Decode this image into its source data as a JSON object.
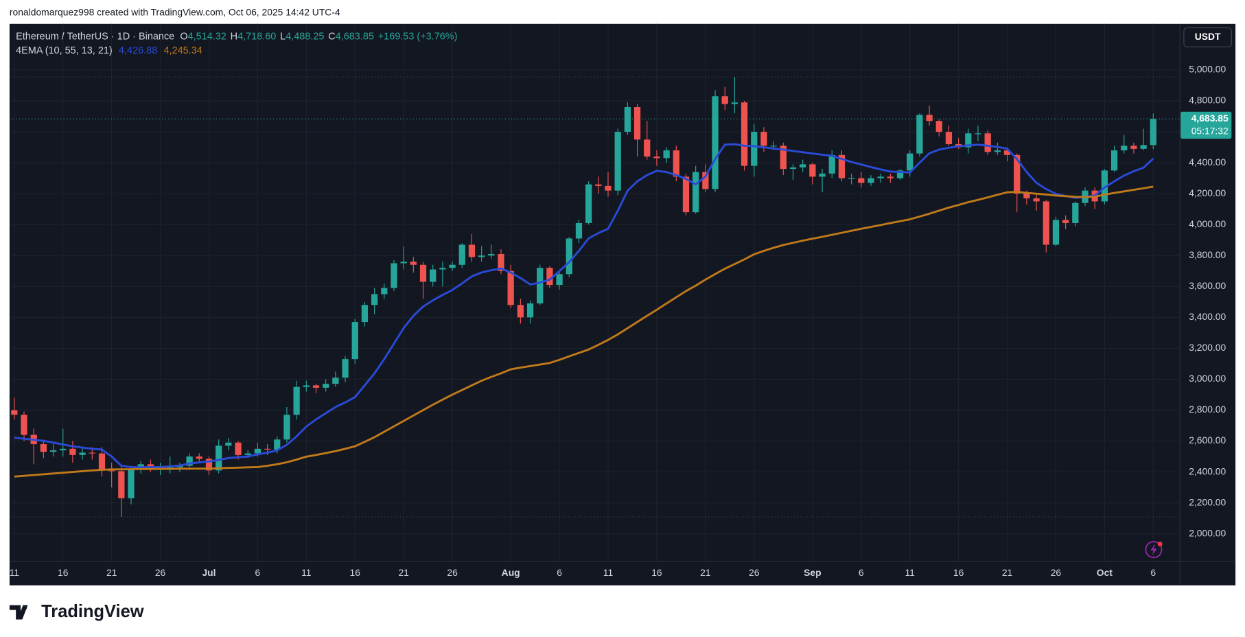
{
  "header": {
    "credit": "ronaldomarquez998 created with TradingView.com, Oct 06, 2025 14:42 UTC-4",
    "logo": "TradingView"
  },
  "chart_data": {
    "type": "candlestick",
    "title": "Ethereum / TetherUS · 1D · Binance",
    "ohlc_legend": [
      {
        "key": "O",
        "label": "4,514.32"
      },
      {
        "key": "H",
        "label": "4,718.60"
      },
      {
        "key": "L",
        "label": "4,488.25"
      },
      {
        "key": "C",
        "label": "4,683.85"
      }
    ],
    "change": "+169.53 (+3.76%)",
    "indicator": "4EMA (10, 55, 13, 21)",
    "currency": "USDT",
    "last_price_label": "4,683.85",
    "countdown": "05:17:32",
    "up_color": "#26a69a",
    "down_color": "#ef5350",
    "grid": true,
    "categories": [
      "11",
      null,
      null,
      null,
      null,
      "16",
      null,
      null,
      null,
      null,
      "21",
      null,
      null,
      null,
      null,
      "26",
      null,
      null,
      null,
      null,
      "Jul",
      null,
      null,
      null,
      null,
      "6",
      null,
      null,
      null,
      null,
      "11",
      null,
      null,
      null,
      null,
      "16",
      null,
      null,
      null,
      null,
      "21",
      null,
      null,
      null,
      null,
      "26",
      null,
      null,
      null,
      null,
      null,
      "Aug",
      null,
      null,
      null,
      null,
      "6",
      null,
      null,
      null,
      null,
      "11",
      null,
      null,
      null,
      null,
      "16",
      null,
      null,
      null,
      null,
      "21",
      null,
      null,
      null,
      null,
      "26",
      null,
      null,
      null,
      null,
      null,
      "Sep",
      null,
      null,
      null,
      null,
      "6",
      null,
      null,
      null,
      null,
      "11",
      null,
      null,
      null,
      null,
      "16",
      null,
      null,
      null,
      null,
      "21",
      null,
      null,
      null,
      null,
      "26",
      null,
      null,
      null,
      null,
      "Oct",
      null,
      null,
      null,
      null,
      "6"
    ],
    "open": [
      2800,
      2770,
      2640,
      2580,
      2530,
      2540,
      2550,
      2510,
      2525,
      2520,
      2410,
      2405,
      2230,
      2415,
      2450,
      2420,
      2420,
      2430,
      2440,
      2500,
      2485,
      2410,
      2570,
      2590,
      2510,
      2520,
      2550,
      2545,
      2610,
      2770,
      2950,
      2960,
      2945,
      2970,
      3010,
      3130,
      3370,
      3480,
      3550,
      3590,
      3750,
      3760,
      3740,
      3630,
      3710,
      3720,
      3740,
      3870,
      3790,
      3800,
      3810,
      3700,
      3480,
      3400,
      3490,
      3720,
      3610,
      3680,
      3910,
      4010,
      4260,
      4250,
      4220,
      4600,
      4760,
      4550,
      4440,
      4430,
      4480,
      4310,
      4080,
      4340,
      4230,
      4830,
      4780,
      4790,
      4380,
      4600,
      4510,
      4510,
      4360,
      4370,
      4390,
      4310,
      4330,
      4450,
      4300,
      4300,
      4270,
      4300,
      4310,
      4300,
      4350,
      4460,
      4710,
      4670,
      4600,
      4520,
      4500,
      4590,
      4590,
      4470,
      4480,
      4450,
      4200,
      4170,
      4150,
      3870,
      4030,
      4010,
      4140,
      4220,
      4150,
      4350,
      4480,
      4510,
      4490,
      4514.32
    ],
    "high": [
      2880,
      2790,
      2680,
      2610,
      2580,
      2680,
      2600,
      2560,
      2560,
      2560,
      2460,
      2440,
      2440,
      2470,
      2480,
      2460,
      2500,
      2460,
      2520,
      2520,
      2500,
      2610,
      2620,
      2600,
      2540,
      2590,
      2580,
      2630,
      2820,
      2990,
      2990,
      2970,
      3000,
      3050,
      3150,
      3390,
      3500,
      3590,
      3620,
      3770,
      3860,
      3790,
      3760,
      3740,
      3760,
      3760,
      3880,
      3940,
      3860,
      3870,
      3840,
      3740,
      3520,
      3510,
      3740,
      3730,
      3700,
      3920,
      4030,
      4280,
      4310,
      4340,
      4620,
      4790,
      4780,
      4670,
      4480,
      4500,
      4510,
      4330,
      4380,
      4390,
      4870,
      4890,
      4955,
      4800,
      4650,
      4630,
      4540,
      4530,
      4390,
      4420,
      4400,
      4360,
      4480,
      4480,
      4330,
      4340,
      4320,
      4330,
      4330,
      4360,
      4480,
      4720,
      4770,
      4680,
      4640,
      4560,
      4620,
      4640,
      4610,
      4530,
      4500,
      4460,
      4220,
      4200,
      4160,
      4050,
      4060,
      4150,
      4240,
      4240,
      4360,
      4510,
      4580,
      4530,
      4620,
      4718.6
    ],
    "low": [
      2740,
      2600,
      2450,
      2490,
      2500,
      2500,
      2460,
      2480,
      2480,
      2370,
      2300,
      2110,
      2190,
      2390,
      2400,
      2380,
      2390,
      2400,
      2420,
      2460,
      2380,
      2390,
      2540,
      2480,
      2490,
      2500,
      2510,
      2520,
      2590,
      2740,
      2920,
      2910,
      2920,
      2950,
      2980,
      3100,
      3340,
      3420,
      3520,
      3570,
      3710,
      3690,
      3520,
      3600,
      3600,
      3700,
      3720,
      3760,
      3760,
      3780,
      3680,
      3460,
      3360,
      3360,
      3480,
      3590,
      3580,
      3660,
      3880,
      4000,
      4200,
      4180,
      4190,
      4580,
      4440,
      4420,
      4380,
      4400,
      4280,
      4060,
      4070,
      4210,
      4210,
      4740,
      4720,
      4350,
      4310,
      4470,
      4480,
      4320,
      4290,
      4340,
      4260,
      4210,
      4300,
      4280,
      4260,
      4240,
      4250,
      4270,
      4270,
      4290,
      4310,
      4440,
      4640,
      4570,
      4510,
      4490,
      4460,
      4540,
      4450,
      4450,
      4410,
      4080,
      4130,
      4090,
      3820,
      3860,
      3970,
      3990,
      4120,
      4100,
      4130,
      4340,
      4460,
      4460,
      4480,
      4488.25
    ],
    "close": [
      2770,
      2640,
      2580,
      2530,
      2540,
      2550,
      2510,
      2525,
      2520,
      2410,
      2405,
      2230,
      2415,
      2450,
      2420,
      2420,
      2430,
      2440,
      2500,
      2485,
      2410,
      2570,
      2590,
      2510,
      2520,
      2550,
      2545,
      2610,
      2770,
      2950,
      2960,
      2945,
      2970,
      3010,
      3130,
      3370,
      3480,
      3550,
      3590,
      3750,
      3760,
      3740,
      3630,
      3710,
      3720,
      3740,
      3870,
      3790,
      3800,
      3810,
      3700,
      3480,
      3400,
      3490,
      3720,
      3610,
      3680,
      3910,
      4010,
      4260,
      4250,
      4220,
      4600,
      4760,
      4550,
      4440,
      4430,
      4480,
      4310,
      4080,
      4340,
      4230,
      4830,
      4780,
      4790,
      4380,
      4600,
      4510,
      4510,
      4360,
      4370,
      4390,
      4310,
      4330,
      4450,
      4300,
      4300,
      4270,
      4300,
      4310,
      4300,
      4350,
      4460,
      4710,
      4670,
      4600,
      4520,
      4500,
      4590,
      4590,
      4470,
      4480,
      4450,
      4200,
      4170,
      4150,
      3870,
      4030,
      4010,
      4140,
      4220,
      4150,
      4350,
      4480,
      4510,
      4490,
      4514.32,
      4683.85
    ],
    "series": [
      {
        "color": "#2a4bd7",
        "value_label": "4,426.88",
        "values": [
          2622,
          2615,
          2608,
          2601,
          2590,
          2578,
          2566,
          2558,
          2550,
          2545,
          2500,
          2440,
          2432,
          2430,
          2432,
          2432,
          2436,
          2442,
          2455,
          2462,
          2468,
          2478,
          2490,
          2495,
          2500,
          2514,
          2525,
          2540,
          2576,
          2630,
          2694,
          2740,
          2780,
          2820,
          2850,
          2884,
          2960,
          3038,
          3130,
          3230,
          3331,
          3410,
          3470,
          3510,
          3545,
          3577,
          3620,
          3665,
          3690,
          3705,
          3716,
          3690,
          3654,
          3613,
          3625,
          3644,
          3700,
          3757,
          3830,
          3911,
          3945,
          3973,
          4090,
          4219,
          4280,
          4320,
          4348,
          4340,
          4320,
          4296,
          4260,
          4311,
          4424,
          4517,
          4520,
          4510,
          4507,
          4500,
          4492,
          4485,
          4476,
          4468,
          4460,
          4452,
          4445,
          4425,
          4405,
          4389,
          4372,
          4357,
          4343,
          4340,
          4337,
          4400,
          4461,
          4485,
          4497,
          4507,
          4512,
          4517,
          4510,
          4502,
          4491,
          4424,
          4340,
          4270,
          4230,
          4199,
          4185,
          4173,
          4178,
          4188,
          4240,
          4280,
          4317,
          4345,
          4368,
          4426.88
        ]
      },
      {
        "color": "#c17a1a",
        "value_label": "4,245.34",
        "values": [
          2370,
          2375,
          2380,
          2385,
          2390,
          2395,
          2400,
          2405,
          2410,
          2414,
          2417,
          2417,
          2418,
          2419,
          2419,
          2420,
          2420,
          2421,
          2421,
          2422,
          2422,
          2424,
          2426,
          2428,
          2430,
          2432,
          2440,
          2450,
          2463,
          2480,
          2499,
          2510,
          2522,
          2535,
          2550,
          2566,
          2595,
          2625,
          2660,
          2695,
          2730,
          2765,
          2800,
          2835,
          2868,
          2900,
          2930,
          2960,
          2990,
          3015,
          3038,
          3064,
          3075,
          3085,
          3095,
          3105,
          3125,
          3148,
          3170,
          3192,
          3222,
          3254,
          3290,
          3330,
          3370,
          3410,
          3449,
          3490,
          3530,
          3570,
          3605,
          3644,
          3680,
          3715,
          3745,
          3775,
          3808,
          3830,
          3850,
          3868,
          3882,
          3896,
          3909,
          3921,
          3934,
          3947,
          3960,
          3973,
          3985,
          3997,
          4010,
          4022,
          4034,
          4052,
          4070,
          4090,
          4110,
          4127,
          4145,
          4160,
          4176,
          4193,
          4209,
          4212,
          4205,
          4200,
          4195,
          4188,
          4184,
          4180,
          4178,
          4180,
          4194,
          4205,
          4215,
          4225,
          4235,
          4245.34
        ]
      }
    ],
    "ylim": [
      1821,
      5293
    ],
    "yticks": [
      {
        "value": 2000,
        "label": "2,000.00"
      },
      {
        "value": 2200,
        "label": "2,200.00"
      },
      {
        "value": 2400,
        "label": "2,400.00"
      },
      {
        "value": 2600,
        "label": "2,600.00"
      },
      {
        "value": 2800,
        "label": "2,800.00"
      },
      {
        "value": 3000,
        "label": "3,000.00"
      },
      {
        "value": 3200,
        "label": "3,200.00"
      },
      {
        "value": 3400,
        "label": "3,400.00"
      },
      {
        "value": 3600,
        "label": "3,600.00"
      },
      {
        "value": 3800,
        "label": "3,800.00"
      },
      {
        "value": 4000,
        "label": "4,000.00"
      },
      {
        "value": 4200,
        "label": "4,200.00"
      },
      {
        "value": 4400,
        "label": "4,400.00"
      },
      {
        "value": 4600,
        "label": "4,600.00"
      },
      {
        "value": 4800,
        "label": "4,800.00"
      },
      {
        "value": 5000,
        "label": "5,000.00"
      }
    ]
  }
}
